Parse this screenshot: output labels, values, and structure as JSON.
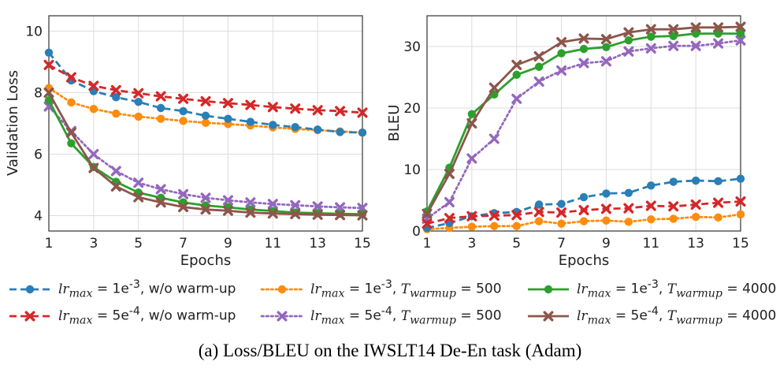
{
  "caption": "(a)  Loss/BLEU on the IWSLT14 De-En task (Adam)",
  "legend": [
    {
      "id": "s1",
      "name": "lr_max = 1e^-3, w/o warm-up",
      "color": "#2a7fb6",
      "style": "dashed",
      "marker": "circle"
    },
    {
      "id": "s2",
      "name": "lr_max = 5e^-4, w/o warm-up",
      "color": "#d62728",
      "style": "dashed",
      "marker": "x"
    },
    {
      "id": "s3",
      "name": "lr_max = 1e^-3, T_warmup = 500",
      "color": "#ff8c0e",
      "style": "dotted",
      "marker": "circle"
    },
    {
      "id": "s4",
      "name": "lr_max = 5e^-4, T_warmup = 500",
      "color": "#9467bd",
      "style": "dotted",
      "marker": "x"
    },
    {
      "id": "s5",
      "name": "lr_max = 1e^-3, T_warmup = 4000",
      "color": "#2ca02c",
      "style": "solid",
      "marker": "circle"
    },
    {
      "id": "s6",
      "name": "lr_max = 5e^-4, T_warmup = 4000",
      "color": "#8c564b",
      "style": "solid",
      "marker": "x"
    }
  ],
  "legend_text": {
    "s1": {
      "sup": "-3",
      "base": "1e",
      "tail": ", w/o warm-up"
    },
    "s2": {
      "sup": "-4",
      "base": "5e",
      "tail": ", w/o warm-up"
    },
    "s3": {
      "sup": "-3",
      "base": "1e",
      "tail": ", ",
      "tw": "500"
    },
    "s4": {
      "sup": "-4",
      "base": "5e",
      "tail": ", ",
      "tw": "500"
    },
    "s5": {
      "sup": "-3",
      "base": "1e",
      "tail": ", ",
      "tw": "4000"
    },
    "s6": {
      "sup": "-4",
      "base": "5e",
      "tail": ", ",
      "tw": "4000"
    }
  },
  "chart_data": [
    {
      "type": "line",
      "xlabel": "Epochs",
      "ylabel": "Validation Loss",
      "x": [
        1,
        2,
        3,
        4,
        5,
        6,
        7,
        8,
        9,
        10,
        11,
        12,
        13,
        14,
        15
      ],
      "xticks": [
        1,
        3,
        5,
        7,
        9,
        11,
        13,
        15
      ],
      "yticks": [
        4,
        6,
        8,
        10
      ],
      "xlim": [
        1,
        15
      ],
      "ylim": [
        3.5,
        10.5
      ],
      "grid": true,
      "series": [
        {
          "id": "s1",
          "values": [
            9.3,
            8.4,
            8.05,
            7.85,
            7.7,
            7.5,
            7.4,
            7.25,
            7.15,
            7.05,
            6.95,
            6.88,
            6.8,
            6.72,
            6.7
          ]
        },
        {
          "id": "s2",
          "values": [
            8.9,
            8.5,
            8.22,
            8.08,
            7.98,
            7.88,
            7.8,
            7.72,
            7.66,
            7.6,
            7.53,
            7.48,
            7.43,
            7.4,
            7.35
          ]
        },
        {
          "id": "s3",
          "values": [
            8.15,
            7.68,
            7.47,
            7.32,
            7.22,
            7.15,
            7.08,
            7.02,
            6.98,
            6.93,
            6.87,
            6.82,
            6.78,
            6.74,
            6.7
          ]
        },
        {
          "id": "s4",
          "values": [
            7.55,
            6.75,
            6.0,
            5.45,
            5.07,
            4.86,
            4.7,
            4.58,
            4.5,
            4.43,
            4.38,
            4.34,
            4.3,
            4.27,
            4.25
          ]
        },
        {
          "id": "s5",
          "values": [
            7.75,
            6.35,
            5.58,
            5.1,
            4.75,
            4.58,
            4.43,
            4.33,
            4.27,
            4.2,
            4.15,
            4.1,
            4.08,
            4.06,
            4.05
          ]
        },
        {
          "id": "s6",
          "values": [
            8.0,
            6.7,
            5.55,
            4.95,
            4.6,
            4.43,
            4.28,
            4.2,
            4.16,
            4.1,
            4.07,
            4.05,
            4.03,
            4.02,
            4.01
          ]
        }
      ]
    },
    {
      "type": "line",
      "xlabel": "Epochs",
      "ylabel": "BLEU",
      "x": [
        1,
        2,
        3,
        4,
        5,
        6,
        7,
        8,
        9,
        10,
        11,
        12,
        13,
        14,
        15
      ],
      "xticks": [
        1,
        3,
        5,
        7,
        9,
        11,
        13,
        15
      ],
      "yticks": [
        0,
        10,
        20,
        30
      ],
      "xlim": [
        1,
        15
      ],
      "ylim": [
        0,
        35
      ],
      "grid": true,
      "series": [
        {
          "id": "s1",
          "values": [
            0.5,
            1.3,
            2.4,
            2.9,
            3.1,
            4.3,
            4.4,
            5.5,
            6.1,
            6.2,
            7.4,
            8.0,
            8.2,
            8.1,
            8.5
          ]
        },
        {
          "id": "s2",
          "values": [
            1.2,
            2.1,
            2.4,
            2.5,
            2.6,
            3.1,
            3.0,
            3.4,
            3.6,
            3.7,
            4.1,
            4.0,
            4.3,
            4.6,
            4.8
          ]
        },
        {
          "id": "s3",
          "values": [
            0.3,
            0.5,
            0.7,
            0.8,
            0.8,
            1.6,
            1.2,
            1.6,
            1.7,
            1.5,
            1.9,
            2.0,
            2.3,
            2.2,
            2.7
          ]
        },
        {
          "id": "s4",
          "values": [
            2.0,
            4.7,
            11.8,
            15.0,
            21.5,
            24.3,
            26.1,
            27.3,
            27.6,
            29.2,
            29.7,
            30.1,
            30.1,
            30.5,
            31.0
          ]
        },
        {
          "id": "s5",
          "values": [
            3.2,
            10.3,
            19.0,
            22.2,
            25.4,
            26.7,
            28.9,
            29.6,
            29.9,
            31.0,
            31.6,
            31.7,
            32.1,
            32.1,
            32.1
          ]
        },
        {
          "id": "s6",
          "values": [
            2.8,
            9.3,
            17.5,
            23.3,
            27.0,
            28.4,
            30.7,
            31.3,
            31.2,
            32.3,
            32.8,
            32.8,
            33.1,
            33.1,
            33.2
          ]
        }
      ]
    }
  ]
}
